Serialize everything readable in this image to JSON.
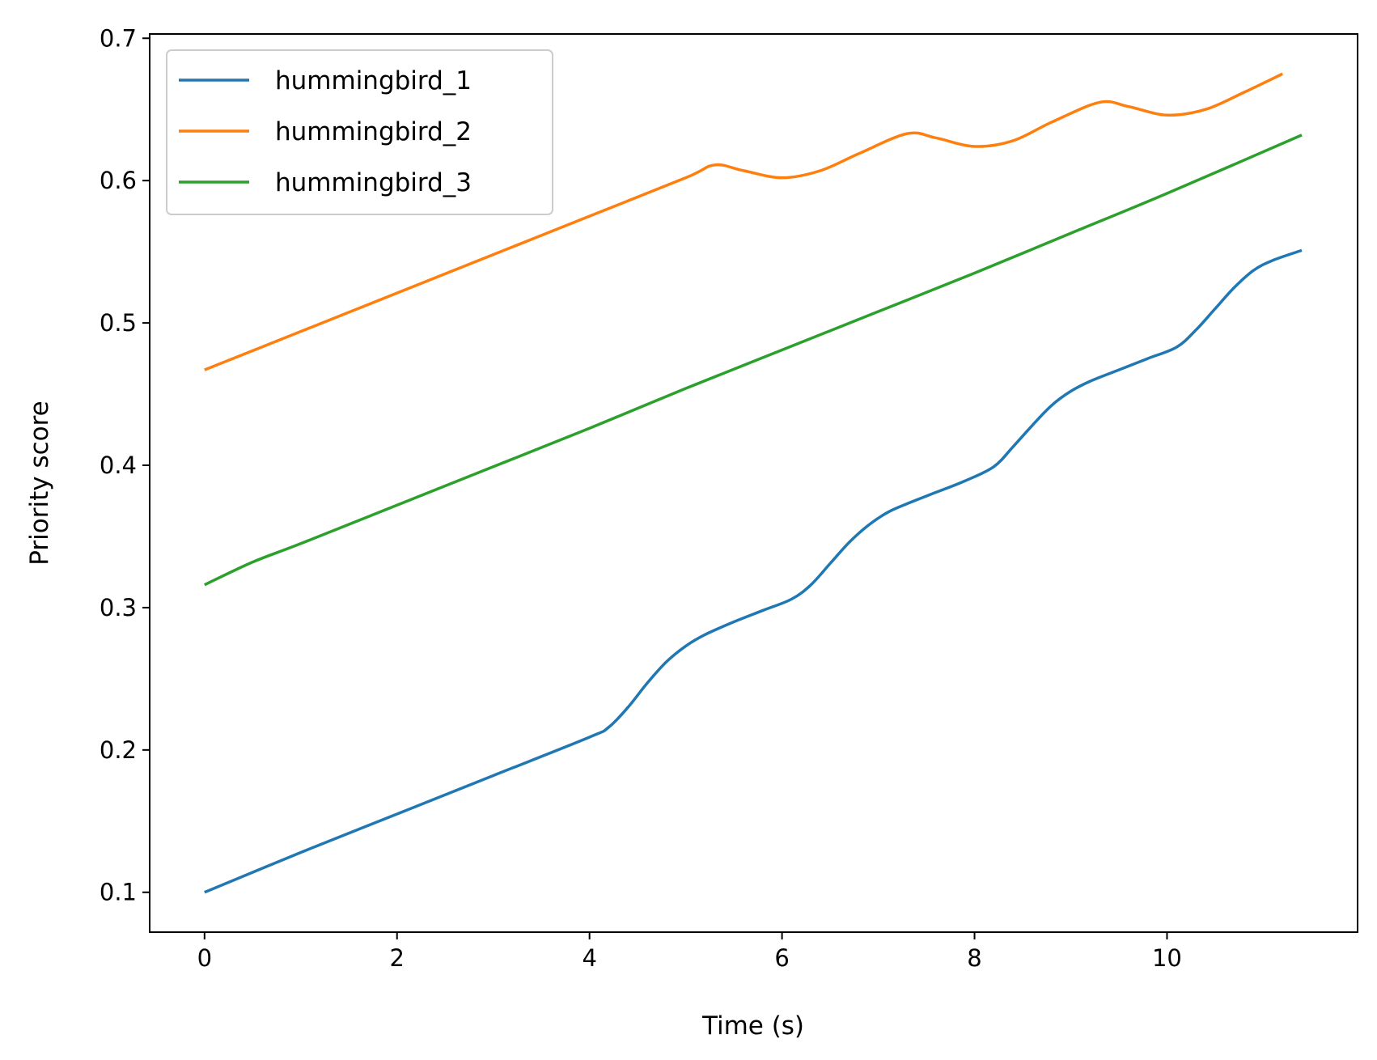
{
  "chart_data": {
    "type": "line",
    "title": "",
    "xlabel": "Time (s)",
    "ylabel": "Priority score",
    "xlim": [
      -0.57,
      11.98
    ],
    "ylim": [
      0.072,
      0.703
    ],
    "x_ticks": [
      0,
      2,
      4,
      6,
      8,
      10
    ],
    "y_ticks": [
      0.1,
      0.2,
      0.3,
      0.4,
      0.5,
      0.6,
      0.7
    ],
    "x_tick_labels": [
      "0",
      "2",
      "4",
      "6",
      "8",
      "10"
    ],
    "y_tick_labels": [
      "0.1",
      "0.2",
      "0.3",
      "0.4",
      "0.5",
      "0.6",
      "0.7"
    ],
    "grid": false,
    "legend_position": "top-left",
    "series": [
      {
        "name": "hummingbird_1",
        "color": "#1f77b4",
        "x": [
          0,
          1,
          2,
          3,
          4,
          4.2,
          4.4,
          4.6,
          4.8,
          5,
          5.2,
          5.5,
          5.8,
          6.1,
          6.3,
          6.5,
          6.7,
          6.9,
          7.1,
          7.3,
          7.6,
          7.9,
          8.2,
          8.4,
          8.6,
          8.8,
          9,
          9.2,
          9.5,
          9.8,
          10.1,
          10.3,
          10.5,
          10.7,
          10.9,
          11.1,
          11.4
        ],
        "y": [
          0.1,
          0.128,
          0.155,
          0.182,
          0.209,
          0.216,
          0.23,
          0.247,
          0.262,
          0.273,
          0.281,
          0.29,
          0.298,
          0.306,
          0.316,
          0.331,
          0.346,
          0.358,
          0.367,
          0.373,
          0.381,
          0.389,
          0.399,
          0.413,
          0.428,
          0.442,
          0.452,
          0.459,
          0.467,
          0.475,
          0.483,
          0.495,
          0.51,
          0.525,
          0.537,
          0.544,
          0.551
        ]
      },
      {
        "name": "hummingbird_2",
        "color": "#ff7f0e",
        "x": [
          0,
          1,
          2,
          3,
          4,
          5,
          5.3,
          5.6,
          6,
          6.4,
          6.8,
          7.3,
          7.6,
          8,
          8.4,
          8.8,
          9.3,
          9.6,
          10,
          10.4,
          10.8,
          11.2
        ],
        "y": [
          0.467,
          0.494,
          0.521,
          0.548,
          0.575,
          0.602,
          0.611,
          0.607,
          0.602,
          0.607,
          0.619,
          0.633,
          0.63,
          0.624,
          0.628,
          0.641,
          0.655,
          0.652,
          0.646,
          0.65,
          0.662,
          0.675
        ]
      },
      {
        "name": "hummingbird_3",
        "color": "#2ca02c",
        "x": [
          0,
          0.5,
          1,
          2,
          3,
          4,
          5,
          6,
          7,
          8,
          9,
          10,
          11.4
        ],
        "y": [
          0.316,
          0.332,
          0.345,
          0.372,
          0.399,
          0.426,
          0.454,
          0.481,
          0.508,
          0.535,
          0.563,
          0.591,
          0.632
        ]
      }
    ]
  }
}
